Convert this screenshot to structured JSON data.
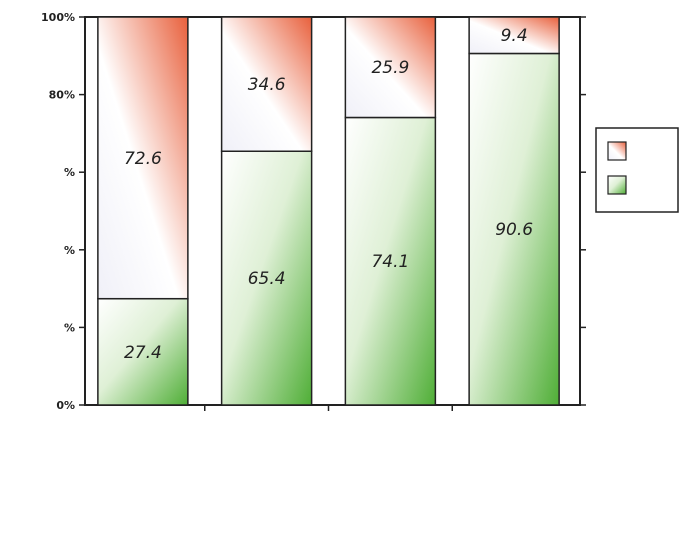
{
  "chart_data": {
    "type": "bar",
    "stacked": true,
    "categories": [
      "",
      "",
      "",
      ""
    ],
    "series": [
      {
        "name": "",
        "values": [
          27.4,
          65.4,
          74.1,
          90.6
        ],
        "color": "#5fb846"
      },
      {
        "name": "",
        "values": [
          72.6,
          34.6,
          25.9,
          9.4
        ],
        "color": "#e8603c"
      }
    ],
    "yticks": [
      "0%",
      "%",
      "%",
      "%",
      "80%",
      "100%"
    ],
    "ylim": [
      0,
      100
    ],
    "xlabel": "",
    "ylabel": "",
    "legend_position": "right",
    "grid": false
  }
}
